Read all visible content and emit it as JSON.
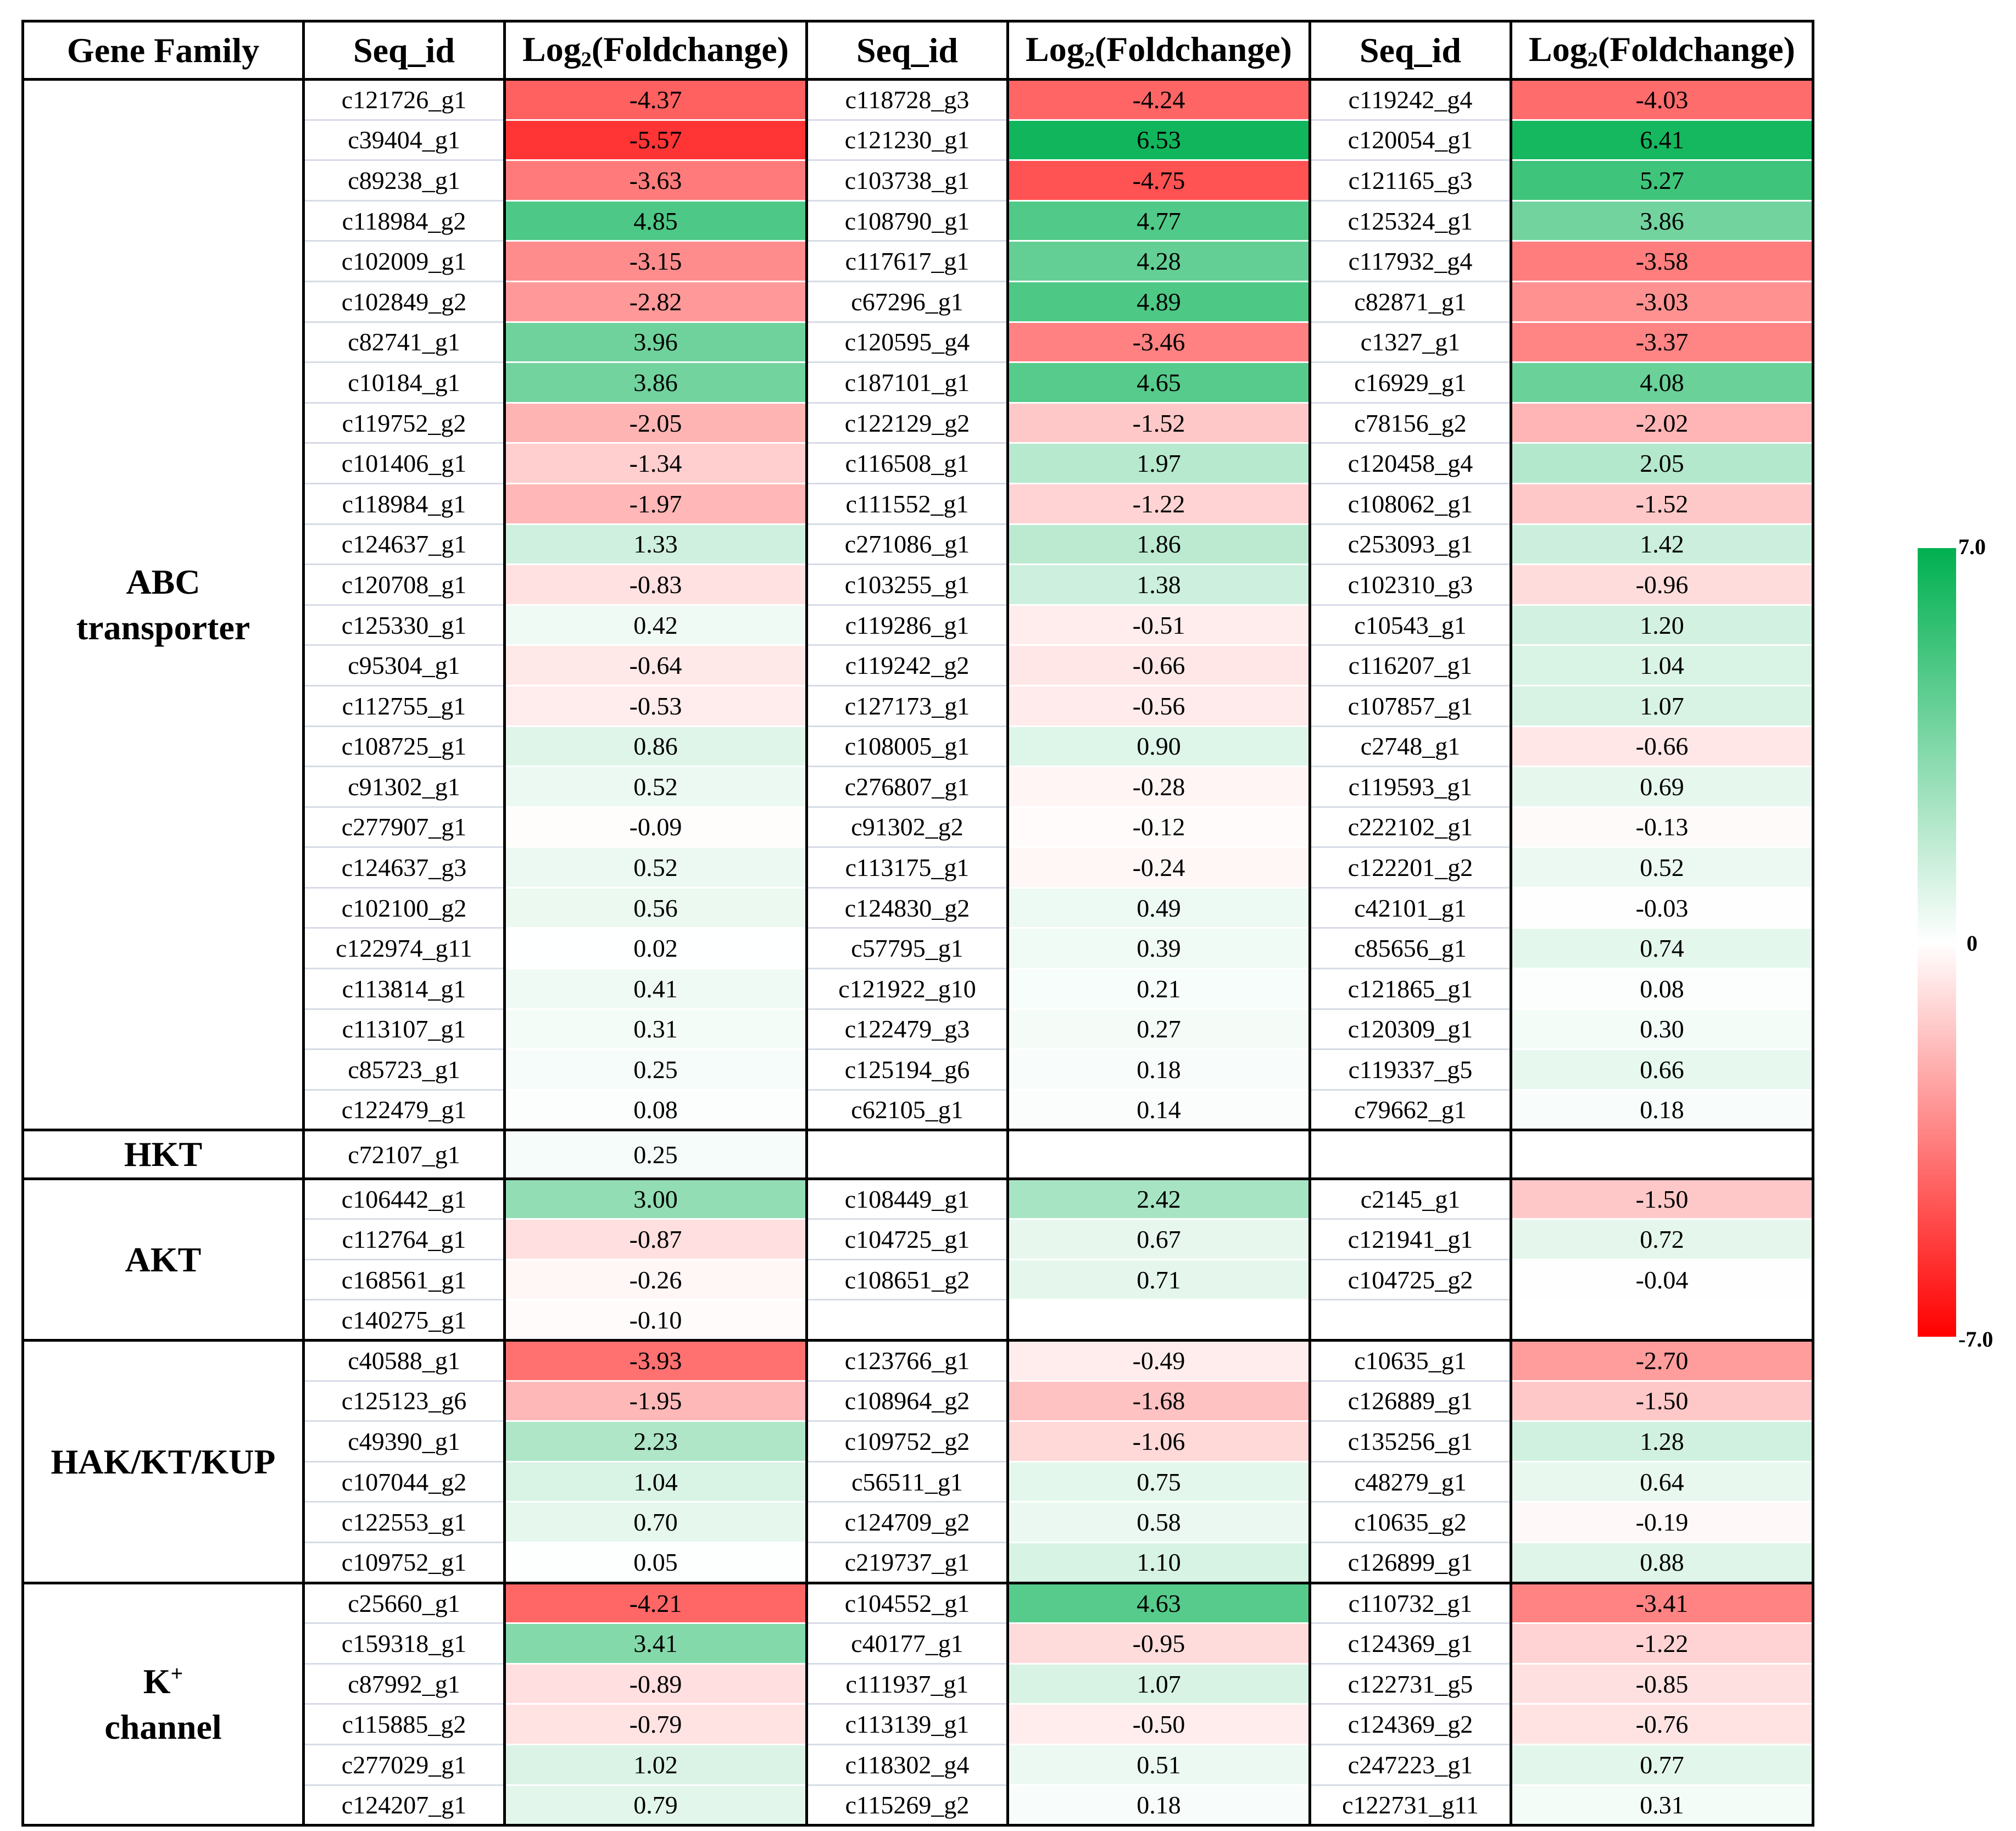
{
  "chart_data": {
    "type": "table",
    "title": "",
    "headers": {
      "family": "Gene Family",
      "seq": "Seq_id",
      "log_prefix": "Log",
      "log_sub": "2",
      "log_suffix": "(Foldchange)"
    },
    "color_scale": {
      "min": -7.0,
      "max": 7.0,
      "min_label": "-7.0",
      "mid_label": "0",
      "max_label": "7.0",
      "low_color": "#ff0000",
      "mid_color": "#ffffff",
      "high_color": "#00b050"
    },
    "groups": [
      {
        "family_lines": [
          "ABC",
          "transporter"
        ],
        "rows": [
          [
            [
              "c121726_g1",
              "-4.37"
            ],
            [
              "c118728_g3",
              "-4.24"
            ],
            [
              "c119242_g4",
              "-4.03"
            ]
          ],
          [
            [
              "c39404_g1",
              "-5.57"
            ],
            [
              "c121230_g1",
              "6.53"
            ],
            [
              "c120054_g1",
              "6.41"
            ]
          ],
          [
            [
              "c89238_g1",
              "-3.63"
            ],
            [
              "c103738_g1",
              "-4.75"
            ],
            [
              "c121165_g3",
              "5.27"
            ]
          ],
          [
            [
              "c118984_g2",
              "4.85"
            ],
            [
              "c108790_g1",
              "4.77"
            ],
            [
              "c125324_g1",
              "3.86"
            ]
          ],
          [
            [
              "c102009_g1",
              "-3.15"
            ],
            [
              "c117617_g1",
              "4.28"
            ],
            [
              "c117932_g4",
              "-3.58"
            ]
          ],
          [
            [
              "c102849_g2",
              "-2.82"
            ],
            [
              "c67296_g1",
              "4.89"
            ],
            [
              "c82871_g1",
              "-3.03"
            ]
          ],
          [
            [
              "c82741_g1",
              "3.96"
            ],
            [
              "c120595_g4",
              "-3.46"
            ],
            [
              "c1327_g1",
              "-3.37"
            ]
          ],
          [
            [
              "c10184_g1",
              "3.86"
            ],
            [
              "c187101_g1",
              "4.65"
            ],
            [
              "c16929_g1",
              "4.08"
            ]
          ],
          [
            [
              "c119752_g2",
              "-2.05"
            ],
            [
              "c122129_g2",
              "-1.52"
            ],
            [
              "c78156_g2",
              "-2.02"
            ]
          ],
          [
            [
              "c101406_g1",
              "-1.34"
            ],
            [
              "c116508_g1",
              "1.97"
            ],
            [
              "c120458_g4",
              "2.05"
            ]
          ],
          [
            [
              "c118984_g1",
              "-1.97"
            ],
            [
              "c111552_g1",
              "-1.22"
            ],
            [
              "c108062_g1",
              "-1.52"
            ]
          ],
          [
            [
              "c124637_g1",
              "1.33"
            ],
            [
              "c271086_g1",
              "1.86"
            ],
            [
              "c253093_g1",
              "1.42"
            ]
          ],
          [
            [
              "c120708_g1",
              "-0.83"
            ],
            [
              "c103255_g1",
              "1.38"
            ],
            [
              "c102310_g3",
              "-0.96"
            ]
          ],
          [
            [
              "c125330_g1",
              "0.42"
            ],
            [
              "c119286_g1",
              "-0.51"
            ],
            [
              "c10543_g1",
              "1.20"
            ]
          ],
          [
            [
              "c95304_g1",
              "-0.64"
            ],
            [
              "c119242_g2",
              "-0.66"
            ],
            [
              "c116207_g1",
              "1.04"
            ]
          ],
          [
            [
              "c112755_g1",
              "-0.53"
            ],
            [
              "c127173_g1",
              "-0.56"
            ],
            [
              "c107857_g1",
              "1.07"
            ]
          ],
          [
            [
              "c108725_g1",
              "0.86"
            ],
            [
              "c108005_g1",
              "0.90"
            ],
            [
              "c2748_g1",
              "-0.66"
            ]
          ],
          [
            [
              "c91302_g1",
              "0.52"
            ],
            [
              "c276807_g1",
              "-0.28"
            ],
            [
              "c119593_g1",
              "0.69"
            ]
          ],
          [
            [
              "c277907_g1",
              "-0.09"
            ],
            [
              "c91302_g2",
              "-0.12"
            ],
            [
              "c222102_g1",
              "-0.13"
            ]
          ],
          [
            [
              "c124637_g3",
              "0.52"
            ],
            [
              "c113175_g1",
              "-0.24"
            ],
            [
              "c122201_g2",
              "0.52"
            ]
          ],
          [
            [
              "c102100_g2",
              "0.56"
            ],
            [
              "c124830_g2",
              "0.49"
            ],
            [
              "c42101_g1",
              "-0.03"
            ]
          ],
          [
            [
              "c122974_g11",
              "0.02"
            ],
            [
              "c57795_g1",
              "0.39"
            ],
            [
              "c85656_g1",
              "0.74"
            ]
          ],
          [
            [
              "c113814_g1",
              "0.41"
            ],
            [
              "c121922_g10",
              "0.21"
            ],
            [
              "c121865_g1",
              "0.08"
            ]
          ],
          [
            [
              "c113107_g1",
              "0.31"
            ],
            [
              "c122479_g3",
              "0.27"
            ],
            [
              "c120309_g1",
              "0.30"
            ]
          ],
          [
            [
              "c85723_g1",
              "0.25"
            ],
            [
              "c125194_g6",
              "0.18"
            ],
            [
              "c119337_g5",
              "0.66"
            ]
          ],
          [
            [
              "c122479_g1",
              "0.08"
            ],
            [
              "c62105_g1",
              "0.14"
            ],
            [
              "c79662_g1",
              "0.18"
            ]
          ]
        ]
      },
      {
        "family_lines": [
          "HKT"
        ],
        "rows": [
          [
            [
              "c72107_g1",
              "0.25"
            ],
            null,
            null
          ]
        ]
      },
      {
        "family_lines": [
          "AKT"
        ],
        "rows": [
          [
            [
              "c106442_g1",
              "3.00"
            ],
            [
              "c108449_g1",
              "2.42"
            ],
            [
              "c2145_g1",
              "-1.50"
            ]
          ],
          [
            [
              "c112764_g1",
              "-0.87"
            ],
            [
              "c104725_g1",
              "0.67"
            ],
            [
              "c121941_g1",
              "0.72"
            ]
          ],
          [
            [
              "c168561_g1",
              "-0.26"
            ],
            [
              "c108651_g2",
              "0.71"
            ],
            [
              "c104725_g2",
              "-0.04"
            ]
          ],
          [
            [
              "c140275_g1",
              "-0.10"
            ],
            null,
            null
          ]
        ]
      },
      {
        "family_lines": [
          "HAK/KT/KUP"
        ],
        "rows": [
          [
            [
              "c40588_g1",
              "-3.93"
            ],
            [
              "c123766_g1",
              "-0.49"
            ],
            [
              "c10635_g1",
              "-2.70"
            ]
          ],
          [
            [
              "c125123_g6",
              "-1.95"
            ],
            [
              "c108964_g2",
              "-1.68"
            ],
            [
              "c126889_g1",
              "-1.50"
            ]
          ],
          [
            [
              "c49390_g1",
              "2.23"
            ],
            [
              "c109752_g2",
              "-1.06"
            ],
            [
              "c135256_g1",
              "1.28"
            ]
          ],
          [
            [
              "c107044_g2",
              "1.04"
            ],
            [
              "c56511_g1",
              "0.75"
            ],
            [
              "c48279_g1",
              "0.64"
            ]
          ],
          [
            [
              "c122553_g1",
              "0.70"
            ],
            [
              "c124709_g2",
              "0.58"
            ],
            [
              "c10635_g2",
              "-0.19"
            ]
          ],
          [
            [
              "c109752_g1",
              "0.05"
            ],
            [
              "c219737_g1",
              "1.10"
            ],
            [
              "c126899_g1",
              "0.88"
            ]
          ]
        ]
      },
      {
        "family_lines": [
          "K",
          "channel"
        ],
        "family_sup": "+",
        "rows": [
          [
            [
              "c25660_g1",
              "-4.21"
            ],
            [
              "c104552_g1",
              "4.63"
            ],
            [
              "c110732_g1",
              "-3.41"
            ]
          ],
          [
            [
              "c159318_g1",
              "3.41"
            ],
            [
              "c40177_g1",
              "-0.95"
            ],
            [
              "c124369_g1",
              "-1.22"
            ]
          ],
          [
            [
              "c87992_g1",
              "-0.89"
            ],
            [
              "c111937_g1",
              "1.07"
            ],
            [
              "c122731_g5",
              "-0.85"
            ]
          ],
          [
            [
              "c115885_g2",
              "-0.79"
            ],
            [
              "c113139_g1",
              "-0.50"
            ],
            [
              "c124369_g2",
              "-0.76"
            ]
          ],
          [
            [
              "c277029_g1",
              "1.02"
            ],
            [
              "c118302_g4",
              "0.51"
            ],
            [
              "c247223_g1",
              "0.77"
            ]
          ],
          [
            [
              "c124207_g1",
              "0.79"
            ],
            [
              "c115269_g2",
              "0.18"
            ],
            [
              "c122731_g11",
              "0.31"
            ]
          ]
        ]
      }
    ]
  }
}
